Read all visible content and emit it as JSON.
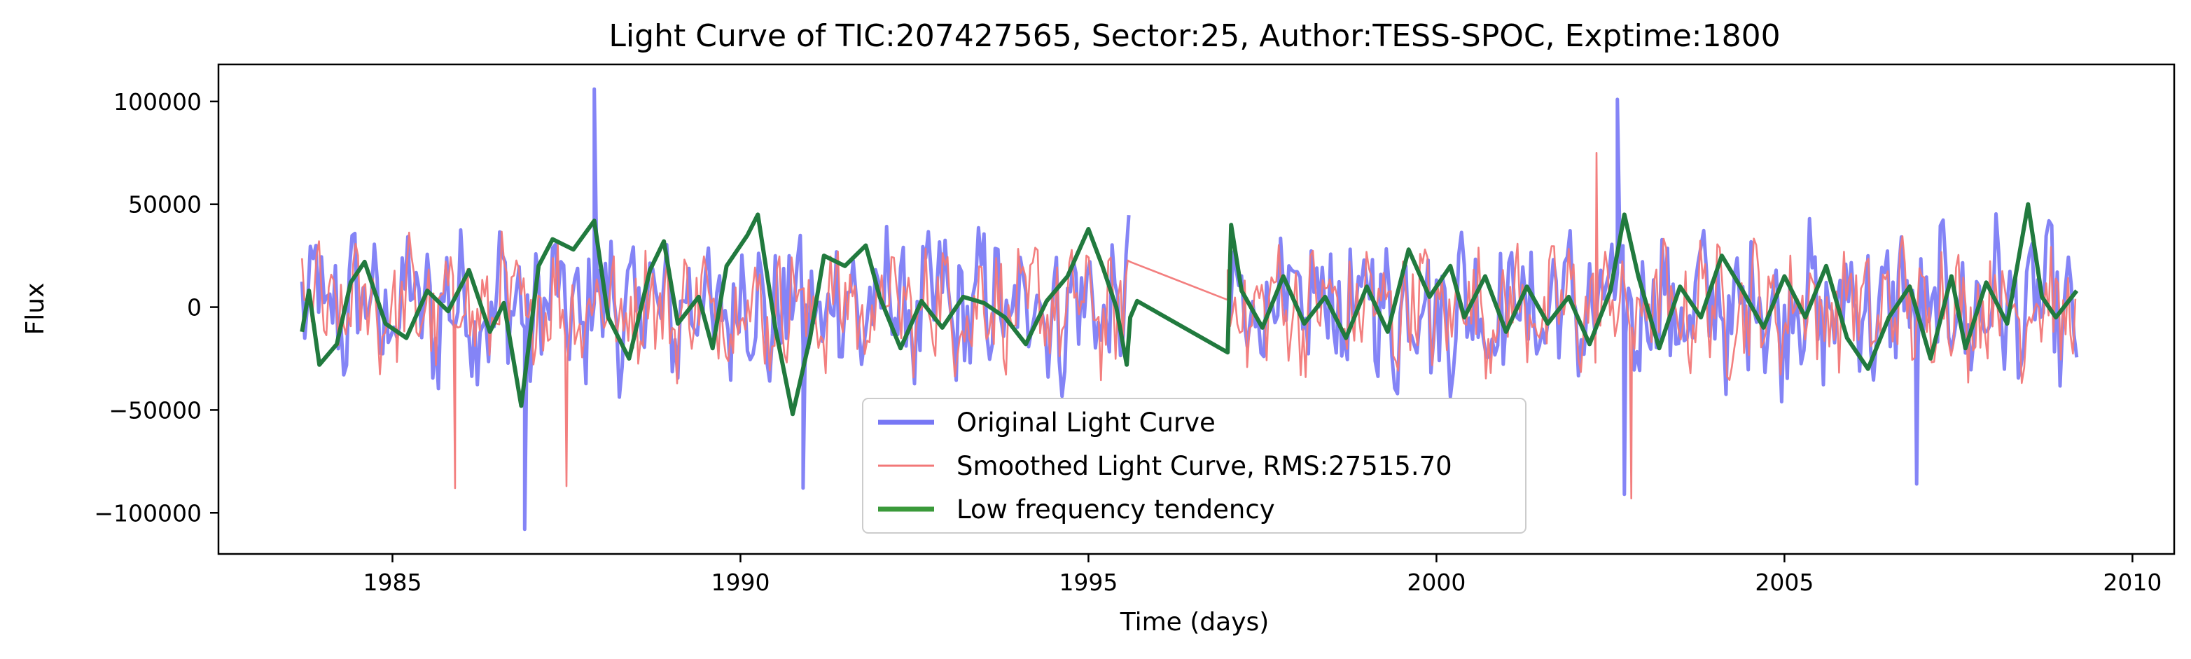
{
  "chart_data": {
    "type": "line",
    "title": "Light Curve of TIC:207427565, Sector:25, Author:TESS-SPOC, Exptime:1800",
    "xlabel": "Time (days)",
    "ylabel": "Flux",
    "xlim": [
      1982.5,
      2010.6
    ],
    "ylim": [
      -120000,
      118000
    ],
    "xticks": [
      {
        "value": 1985,
        "label": "1985"
      },
      {
        "value": 1990,
        "label": "1990"
      },
      {
        "value": 1995,
        "label": "1995"
      },
      {
        "value": 2000,
        "label": "2000"
      },
      {
        "value": 2005,
        "label": "2005"
      },
      {
        "value": 2010,
        "label": "2010"
      }
    ],
    "yticks": [
      {
        "value": 100000,
        "label": "100000"
      },
      {
        "value": 50000,
        "label": "50000"
      },
      {
        "value": 0,
        "label": "0"
      },
      {
        "value": -50000,
        "label": "−50000"
      },
      {
        "value": -100000,
        "label": "−100000"
      }
    ],
    "grid": false,
    "legend": {
      "placement": "lower-center"
    },
    "segments": [
      {
        "x_start": 1983.7,
        "x_end": 1995.6
      },
      {
        "x_start": 1997.0,
        "x_end": 2009.2
      }
    ],
    "series": [
      {
        "name": "Original Light Curve",
        "color": "#7777f5",
        "opacity": 0.9,
        "amplitude": 35000,
        "spikes": [
          [
            1987.9,
            106000
          ],
          [
            1986.9,
            -108000
          ],
          [
            2002.6,
            101000
          ],
          [
            2002.7,
            -91000
          ],
          [
            1990.9,
            -88000
          ],
          [
            2006.9,
            -86000
          ]
        ],
        "step": 0.04
      },
      {
        "name": "Smoothed Light Curve, RMS:27515.70",
        "color": "#f27878",
        "opacity": 0.95,
        "amplitude": 28000,
        "spikes": [
          [
            2002.8,
            -93000
          ],
          [
            1985.9,
            -88000
          ],
          [
            1987.5,
            -87000
          ],
          [
            2002.3,
            75000
          ],
          [
            1995.6,
            22000
          ],
          [
            1997.0,
            18000
          ]
        ],
        "step": 0.035
      },
      {
        "name": "Low frequency tendency",
        "color": "#217a3e",
        "opacity": 1,
        "amplitude": 16000,
        "points": [
          [
            1983.7,
            -12000
          ],
          [
            1983.8,
            8000
          ],
          [
            1983.95,
            -28000
          ],
          [
            1984.2,
            -18000
          ],
          [
            1984.4,
            12000
          ],
          [
            1984.6,
            22000
          ],
          [
            1984.9,
            -8000
          ],
          [
            1985.2,
            -15000
          ],
          [
            1985.5,
            8000
          ],
          [
            1985.8,
            -2000
          ],
          [
            1986.1,
            18000
          ],
          [
            1986.4,
            -12000
          ],
          [
            1986.6,
            2000
          ],
          [
            1986.85,
            -48000
          ],
          [
            1987.1,
            20000
          ],
          [
            1987.3,
            33000
          ],
          [
            1987.6,
            28000
          ],
          [
            1987.9,
            42000
          ],
          [
            1988.1,
            -5000
          ],
          [
            1988.4,
            -25000
          ],
          [
            1988.7,
            18000
          ],
          [
            1988.9,
            32000
          ],
          [
            1989.1,
            -8000
          ],
          [
            1989.4,
            5000
          ],
          [
            1989.6,
            -20000
          ],
          [
            1989.8,
            20000
          ],
          [
            1990.1,
            35000
          ],
          [
            1990.25,
            45000
          ],
          [
            1990.5,
            -10000
          ],
          [
            1990.75,
            -52000
          ],
          [
            1991.0,
            -15000
          ],
          [
            1991.2,
            25000
          ],
          [
            1991.5,
            20000
          ],
          [
            1991.8,
            30000
          ],
          [
            1992.0,
            5000
          ],
          [
            1992.3,
            -20000
          ],
          [
            1992.6,
            3000
          ],
          [
            1992.9,
            -10000
          ],
          [
            1993.2,
            5000
          ],
          [
            1993.5,
            2000
          ],
          [
            1993.8,
            -5000
          ],
          [
            1994.1,
            -18000
          ],
          [
            1994.4,
            3000
          ],
          [
            1994.7,
            15000
          ],
          [
            1995.0,
            38000
          ],
          [
            1995.2,
            20000
          ],
          [
            1995.4,
            0
          ],
          [
            1995.55,
            -28000
          ],
          [
            1995.6,
            -5000
          ],
          [
            1995.7,
            3000
          ],
          [
            1997.0,
            -22000
          ],
          [
            1997.05,
            40000
          ],
          [
            1997.2,
            8000
          ],
          [
            1997.5,
            -10000
          ],
          [
            1997.8,
            15000
          ],
          [
            1998.1,
            -8000
          ],
          [
            1998.4,
            5000
          ],
          [
            1998.7,
            -15000
          ],
          [
            1999.0,
            10000
          ],
          [
            1999.3,
            -12000
          ],
          [
            1999.6,
            28000
          ],
          [
            1999.9,
            5000
          ],
          [
            2000.2,
            20000
          ],
          [
            2000.4,
            -5000
          ],
          [
            2000.7,
            15000
          ],
          [
            2001.0,
            -12000
          ],
          [
            2001.3,
            10000
          ],
          [
            2001.6,
            -8000
          ],
          [
            2001.9,
            5000
          ],
          [
            2002.2,
            -18000
          ],
          [
            2002.5,
            8000
          ],
          [
            2002.7,
            45000
          ],
          [
            2002.9,
            15000
          ],
          [
            2003.2,
            -20000
          ],
          [
            2003.5,
            10000
          ],
          [
            2003.8,
            -5000
          ],
          [
            2004.1,
            25000
          ],
          [
            2004.4,
            8000
          ],
          [
            2004.7,
            -10000
          ],
          [
            2005.0,
            15000
          ],
          [
            2005.3,
            -5000
          ],
          [
            2005.6,
            20000
          ],
          [
            2005.9,
            -15000
          ],
          [
            2006.2,
            -30000
          ],
          [
            2006.5,
            -5000
          ],
          [
            2006.8,
            10000
          ],
          [
            2007.1,
            -25000
          ],
          [
            2007.4,
            15000
          ],
          [
            2007.6,
            -20000
          ],
          [
            2007.9,
            12000
          ],
          [
            2008.2,
            -8000
          ],
          [
            2008.5,
            50000
          ],
          [
            2008.7,
            5000
          ],
          [
            2008.9,
            -5000
          ],
          [
            2009.2,
            8000
          ]
        ]
      }
    ]
  }
}
